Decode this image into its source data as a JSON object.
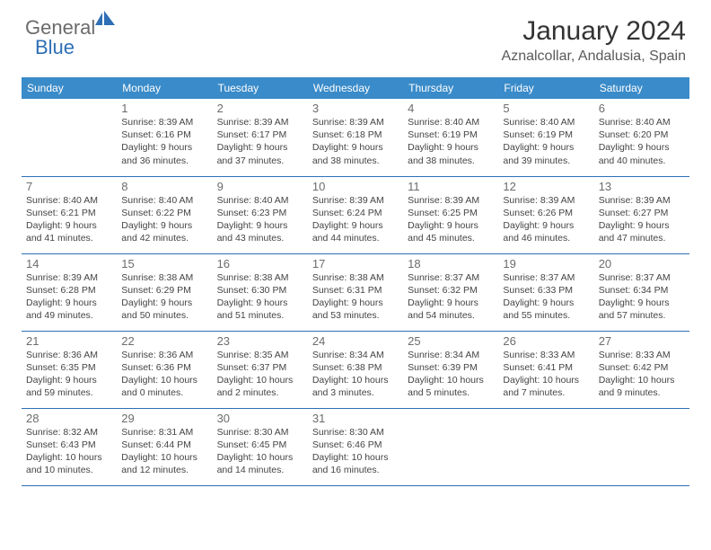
{
  "brand": {
    "general": "General",
    "blue": "Blue"
  },
  "title": "January 2024",
  "location": "Aznalcollar, Andalusia, Spain",
  "header_bg": "#3a8bc9",
  "rule_color": "#2e6fb5",
  "days": [
    "Sunday",
    "Monday",
    "Tuesday",
    "Wednesday",
    "Thursday",
    "Friday",
    "Saturday"
  ],
  "weeks": [
    [
      null,
      {
        "n": "1",
        "sr": "Sunrise: 8:39 AM",
        "ss": "Sunset: 6:16 PM",
        "d1": "Daylight: 9 hours",
        "d2": "and 36 minutes."
      },
      {
        "n": "2",
        "sr": "Sunrise: 8:39 AM",
        "ss": "Sunset: 6:17 PM",
        "d1": "Daylight: 9 hours",
        "d2": "and 37 minutes."
      },
      {
        "n": "3",
        "sr": "Sunrise: 8:39 AM",
        "ss": "Sunset: 6:18 PM",
        "d1": "Daylight: 9 hours",
        "d2": "and 38 minutes."
      },
      {
        "n": "4",
        "sr": "Sunrise: 8:40 AM",
        "ss": "Sunset: 6:19 PM",
        "d1": "Daylight: 9 hours",
        "d2": "and 38 minutes."
      },
      {
        "n": "5",
        "sr": "Sunrise: 8:40 AM",
        "ss": "Sunset: 6:19 PM",
        "d1": "Daylight: 9 hours",
        "d2": "and 39 minutes."
      },
      {
        "n": "6",
        "sr": "Sunrise: 8:40 AM",
        "ss": "Sunset: 6:20 PM",
        "d1": "Daylight: 9 hours",
        "d2": "and 40 minutes."
      }
    ],
    [
      {
        "n": "7",
        "sr": "Sunrise: 8:40 AM",
        "ss": "Sunset: 6:21 PM",
        "d1": "Daylight: 9 hours",
        "d2": "and 41 minutes."
      },
      {
        "n": "8",
        "sr": "Sunrise: 8:40 AM",
        "ss": "Sunset: 6:22 PM",
        "d1": "Daylight: 9 hours",
        "d2": "and 42 minutes."
      },
      {
        "n": "9",
        "sr": "Sunrise: 8:40 AM",
        "ss": "Sunset: 6:23 PM",
        "d1": "Daylight: 9 hours",
        "d2": "and 43 minutes."
      },
      {
        "n": "10",
        "sr": "Sunrise: 8:39 AM",
        "ss": "Sunset: 6:24 PM",
        "d1": "Daylight: 9 hours",
        "d2": "and 44 minutes."
      },
      {
        "n": "11",
        "sr": "Sunrise: 8:39 AM",
        "ss": "Sunset: 6:25 PM",
        "d1": "Daylight: 9 hours",
        "d2": "and 45 minutes."
      },
      {
        "n": "12",
        "sr": "Sunrise: 8:39 AM",
        "ss": "Sunset: 6:26 PM",
        "d1": "Daylight: 9 hours",
        "d2": "and 46 minutes."
      },
      {
        "n": "13",
        "sr": "Sunrise: 8:39 AM",
        "ss": "Sunset: 6:27 PM",
        "d1": "Daylight: 9 hours",
        "d2": "and 47 minutes."
      }
    ],
    [
      {
        "n": "14",
        "sr": "Sunrise: 8:39 AM",
        "ss": "Sunset: 6:28 PM",
        "d1": "Daylight: 9 hours",
        "d2": "and 49 minutes."
      },
      {
        "n": "15",
        "sr": "Sunrise: 8:38 AM",
        "ss": "Sunset: 6:29 PM",
        "d1": "Daylight: 9 hours",
        "d2": "and 50 minutes."
      },
      {
        "n": "16",
        "sr": "Sunrise: 8:38 AM",
        "ss": "Sunset: 6:30 PM",
        "d1": "Daylight: 9 hours",
        "d2": "and 51 minutes."
      },
      {
        "n": "17",
        "sr": "Sunrise: 8:38 AM",
        "ss": "Sunset: 6:31 PM",
        "d1": "Daylight: 9 hours",
        "d2": "and 53 minutes."
      },
      {
        "n": "18",
        "sr": "Sunrise: 8:37 AM",
        "ss": "Sunset: 6:32 PM",
        "d1": "Daylight: 9 hours",
        "d2": "and 54 minutes."
      },
      {
        "n": "19",
        "sr": "Sunrise: 8:37 AM",
        "ss": "Sunset: 6:33 PM",
        "d1": "Daylight: 9 hours",
        "d2": "and 55 minutes."
      },
      {
        "n": "20",
        "sr": "Sunrise: 8:37 AM",
        "ss": "Sunset: 6:34 PM",
        "d1": "Daylight: 9 hours",
        "d2": "and 57 minutes."
      }
    ],
    [
      {
        "n": "21",
        "sr": "Sunrise: 8:36 AM",
        "ss": "Sunset: 6:35 PM",
        "d1": "Daylight: 9 hours",
        "d2": "and 59 minutes."
      },
      {
        "n": "22",
        "sr": "Sunrise: 8:36 AM",
        "ss": "Sunset: 6:36 PM",
        "d1": "Daylight: 10 hours",
        "d2": "and 0 minutes."
      },
      {
        "n": "23",
        "sr": "Sunrise: 8:35 AM",
        "ss": "Sunset: 6:37 PM",
        "d1": "Daylight: 10 hours",
        "d2": "and 2 minutes."
      },
      {
        "n": "24",
        "sr": "Sunrise: 8:34 AM",
        "ss": "Sunset: 6:38 PM",
        "d1": "Daylight: 10 hours",
        "d2": "and 3 minutes."
      },
      {
        "n": "25",
        "sr": "Sunrise: 8:34 AM",
        "ss": "Sunset: 6:39 PM",
        "d1": "Daylight: 10 hours",
        "d2": "and 5 minutes."
      },
      {
        "n": "26",
        "sr": "Sunrise: 8:33 AM",
        "ss": "Sunset: 6:41 PM",
        "d1": "Daylight: 10 hours",
        "d2": "and 7 minutes."
      },
      {
        "n": "27",
        "sr": "Sunrise: 8:33 AM",
        "ss": "Sunset: 6:42 PM",
        "d1": "Daylight: 10 hours",
        "d2": "and 9 minutes."
      }
    ],
    [
      {
        "n": "28",
        "sr": "Sunrise: 8:32 AM",
        "ss": "Sunset: 6:43 PM",
        "d1": "Daylight: 10 hours",
        "d2": "and 10 minutes."
      },
      {
        "n": "29",
        "sr": "Sunrise: 8:31 AM",
        "ss": "Sunset: 6:44 PM",
        "d1": "Daylight: 10 hours",
        "d2": "and 12 minutes."
      },
      {
        "n": "30",
        "sr": "Sunrise: 8:30 AM",
        "ss": "Sunset: 6:45 PM",
        "d1": "Daylight: 10 hours",
        "d2": "and 14 minutes."
      },
      {
        "n": "31",
        "sr": "Sunrise: 8:30 AM",
        "ss": "Sunset: 6:46 PM",
        "d1": "Daylight: 10 hours",
        "d2": "and 16 minutes."
      },
      null,
      null,
      null
    ]
  ]
}
